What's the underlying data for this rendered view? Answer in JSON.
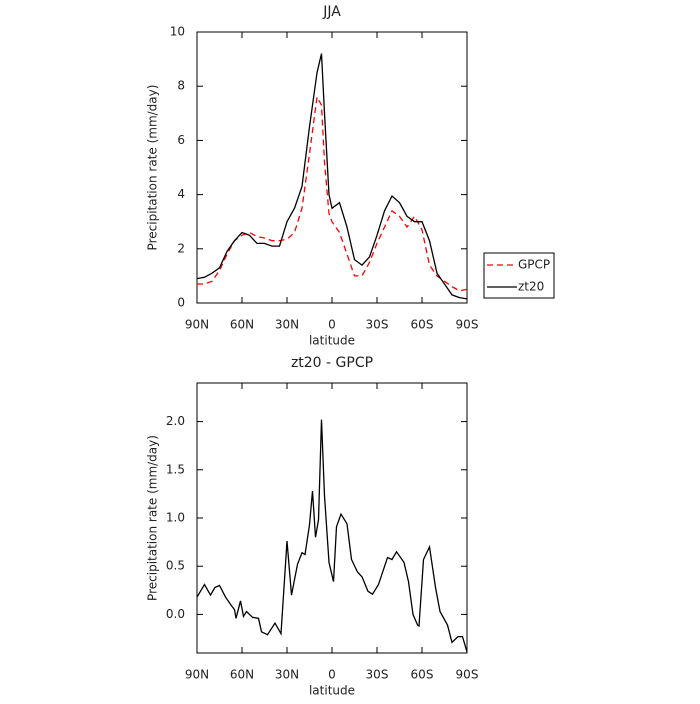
{
  "chart_data": [
    {
      "type": "line",
      "title": "JJA",
      "x_label": "latitude",
      "y_label": "Precipitation rate (mm/day)",
      "x": [
        90,
        85,
        80,
        75,
        70,
        65,
        60,
        55,
        50,
        45,
        40,
        35,
        30,
        25,
        20,
        15,
        10,
        7,
        5,
        2,
        0,
        -5,
        -10,
        -15,
        -20,
        -25,
        -30,
        -35,
        -40,
        -45,
        -50,
        -55,
        -60,
        -65,
        -70,
        -75,
        -80,
        -85,
        -90
      ],
      "series": [
        {
          "name": "GPCP",
          "color": "#ff0000",
          "style": "dashed",
          "values": [
            0.7,
            0.7,
            0.8,
            1.2,
            1.8,
            2.3,
            2.5,
            2.6,
            2.45,
            2.4,
            2.3,
            2.3,
            2.35,
            2.6,
            3.5,
            5.5,
            7.6,
            7.3,
            5.2,
            3.3,
            3.0,
            2.6,
            1.8,
            1.0,
            1.0,
            1.5,
            2.2,
            2.8,
            3.4,
            3.2,
            2.8,
            3.2,
            2.7,
            1.4,
            1.0,
            0.8,
            0.6,
            0.45,
            0.5
          ]
        },
        {
          "name": "zt20",
          "color": "#000000",
          "style": "solid",
          "values": [
            0.9,
            0.95,
            1.1,
            1.3,
            1.9,
            2.3,
            2.6,
            2.5,
            2.2,
            2.2,
            2.1,
            2.1,
            3.0,
            3.5,
            4.3,
            6.5,
            8.5,
            9.2,
            7.0,
            4.0,
            3.5,
            3.7,
            2.8,
            1.6,
            1.4,
            1.7,
            2.5,
            3.4,
            3.95,
            3.7,
            3.2,
            3.0,
            3.0,
            2.3,
            1.1,
            0.7,
            0.3,
            0.2,
            0.15
          ]
        }
      ],
      "xlim": [
        90,
        -90
      ],
      "xticks": [
        {
          "value": 90,
          "label": "90N"
        },
        {
          "value": 60,
          "label": "60N"
        },
        {
          "value": 30,
          "label": "30N"
        },
        0,
        {
          "value": -30,
          "label": "30S"
        },
        {
          "value": -60,
          "label": "60S"
        },
        {
          "value": -90,
          "label": "90S"
        }
      ],
      "ylim": [
        0,
        10
      ],
      "yticks": [
        0,
        2,
        4,
        6,
        8,
        10
      ],
      "grid": false,
      "legend": "right"
    },
    {
      "type": "line",
      "title": "zt20 - GPCP",
      "x_label": "latitude",
      "y_label": "Precipitation rate (mm/day)",
      "x": [
        90,
        85,
        81,
        78,
        75,
        71,
        67,
        65,
        64,
        61,
        59,
        57,
        53,
        49,
        47,
        43,
        38,
        34,
        30,
        27,
        23,
        20,
        18,
        15,
        13,
        11,
        9,
        7,
        5,
        2,
        -1,
        -3,
        -6,
        -10,
        -13,
        -17,
        -20,
        -24,
        -27,
        -31,
        -37,
        -40,
        -43,
        -48,
        -51,
        -54,
        -57,
        -58,
        -61,
        -65,
        -69,
        -72,
        -77,
        -80,
        -84,
        -87,
        -90
      ],
      "values": [
        0.18,
        0.31,
        0.2,
        0.28,
        0.3,
        0.18,
        0.09,
        0.05,
        -0.04,
        0.14,
        -0.02,
        0.03,
        -0.03,
        -0.04,
        -0.18,
        -0.21,
        -0.09,
        -0.2,
        0.76,
        0.2,
        0.52,
        0.64,
        0.62,
        0.93,
        1.28,
        0.8,
        0.98,
        2.02,
        1.23,
        0.54,
        0.34,
        0.91,
        1.04,
        0.94,
        0.57,
        0.44,
        0.39,
        0.24,
        0.21,
        0.31,
        0.59,
        0.57,
        0.65,
        0.54,
        0.34,
        0,
        -0.11,
        -0.12,
        0.57,
        0.7,
        0.28,
        0.03,
        -0.11,
        -0.29,
        -0.23,
        -0.23,
        -0.39
      ],
      "color": "#000000",
      "xlim": [
        90,
        -90
      ],
      "xticks": [
        {
          "value": 90,
          "label": "90N"
        },
        {
          "value": 60,
          "label": "60N"
        },
        {
          "value": 30,
          "label": "30N"
        },
        0,
        {
          "value": -30,
          "label": "30S"
        },
        {
          "value": -60,
          "label": "60S"
        },
        {
          "value": -90,
          "label": "90S"
        }
      ],
      "ylim": [
        -0.4,
        2.4
      ],
      "yticks": [
        {
          "value": 0,
          "label": "0.0"
        },
        0.5,
        {
          "value": 1,
          "label": "1.0"
        },
        1.5,
        {
          "value": 2,
          "label": "2.0"
        }
      ],
      "grid": false
    }
  ]
}
